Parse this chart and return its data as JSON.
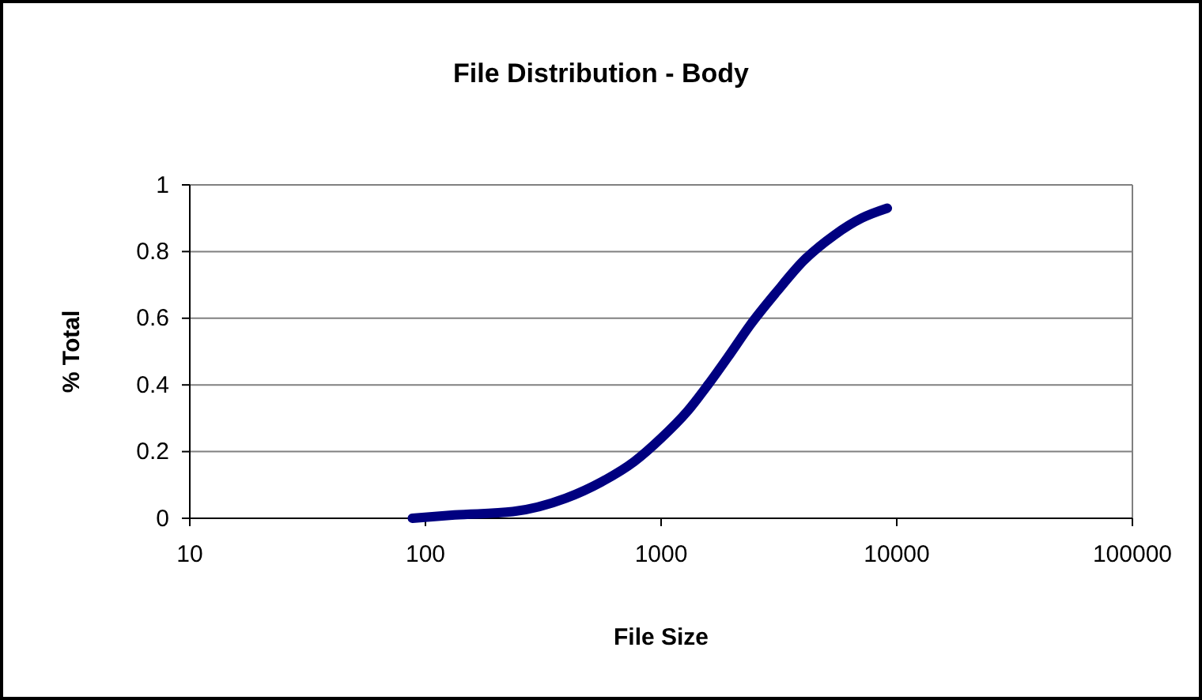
{
  "chart_data": {
    "type": "line",
    "title": "File Distribution - Body",
    "xlabel": "File Size",
    "ylabel": "% Total",
    "x": [
      88,
      133,
      235,
      394,
      562,
      769,
      1000,
      1290,
      1580,
      1950,
      2390,
      3100,
      3990,
      5450,
      7090,
      9120
    ],
    "series": [
      {
        "color": "#000080",
        "values": [
          0,
          0.01,
          0.02,
          0.06,
          0.11,
          0.17,
          0.24,
          0.32,
          0.4,
          0.49,
          0.58,
          0.68,
          0.77,
          0.85,
          0.9,
          0.93
        ]
      }
    ],
    "log": "x",
    "xlim": [
      10,
      100000
    ],
    "xticks": [
      10,
      100,
      1000,
      10000,
      100000
    ],
    "ylim": [
      0,
      1
    ],
    "yticks": [
      0,
      0.2,
      0.4,
      0.6,
      0.8,
      1
    ],
    "grid": "y",
    "marker": "none",
    "line_style": "solid"
  }
}
